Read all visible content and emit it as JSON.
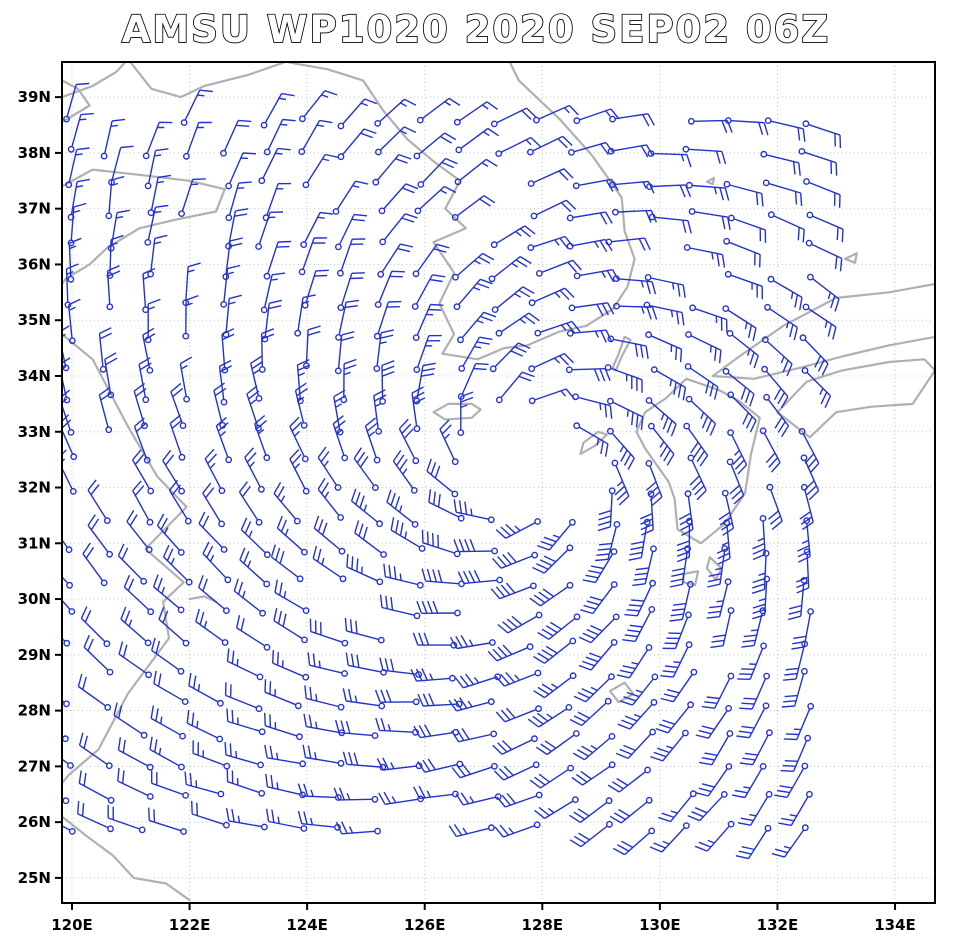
{
  "title": "AMSU WP1020 2020 SEP02 06Z",
  "colors": {
    "background": "#ffffff",
    "frame": "#000000",
    "grid": "#c4c4c4",
    "coastline": "#b0b0b0",
    "barb": "#2233cc",
    "label": "#000000"
  },
  "chart_data": {
    "type": "wind_barb_map",
    "title": "AMSU WP1020 2020 SEP02 06Z",
    "projection": "lat-lon",
    "grid_style": "dotted",
    "lon_range": [
      119.83,
      134.68
    ],
    "lat_range": [
      24.55,
      39.63
    ],
    "x_ticks": [
      {
        "value": 120,
        "label": "120E"
      },
      {
        "value": 122,
        "label": "122E"
      },
      {
        "value": 124,
        "label": "124E"
      },
      {
        "value": 126,
        "label": "126E"
      },
      {
        "value": 128,
        "label": "128E"
      },
      {
        "value": 130,
        "label": "130E"
      },
      {
        "value": 132,
        "label": "132E"
      },
      {
        "value": 134,
        "label": "134E"
      }
    ],
    "y_ticks": [
      {
        "value": 25,
        "label": "25N"
      },
      {
        "value": 26,
        "label": "26N"
      },
      {
        "value": 27,
        "label": "27N"
      },
      {
        "value": 28,
        "label": "28N"
      },
      {
        "value": 29,
        "label": "29N"
      },
      {
        "value": 30,
        "label": "30N"
      },
      {
        "value": 31,
        "label": "31N"
      },
      {
        "value": 32,
        "label": "32N"
      },
      {
        "value": 33,
        "label": "33N"
      },
      {
        "value": 34,
        "label": "34N"
      },
      {
        "value": 35,
        "label": "35N"
      },
      {
        "value": 36,
        "label": "36N"
      },
      {
        "value": 37,
        "label": "37N"
      },
      {
        "value": 38,
        "label": "38N"
      },
      {
        "value": 39,
        "label": "39N"
      }
    ],
    "wind_field": {
      "description": "Satellite-derived wind barbs around tropical cyclone WP1020; cyclonic (counterclockwise) circulation; 10 kt per full barb, 5 kt per half barb; open circle marks observation point, staff points upwind",
      "units": "kt",
      "center_lonlat": [
        127.8,
        32.5
      ],
      "eye_radius_deg": 0.9,
      "max_wind_kt": 38,
      "radius_max_wind_deg": 2.0,
      "inflow_deg": 22,
      "asymmetry_amplitude": 0.28,
      "asymmetry_peak_bearing_deg": -60,
      "grid_lon_start": 119.95,
      "grid_lon_step": 0.66,
      "grid_cols": 20,
      "grid_lat_start": 25.9,
      "grid_lat_step": 0.55,
      "grid_rows": 24,
      "dropout_fraction": 0.09,
      "speed_range_kt": [
        5,
        42
      ]
    },
    "coastlines": [
      {
        "name": "bohai-west",
        "points": [
          [
            119.83,
            39.0
          ],
          [
            120.35,
            39.2
          ],
          [
            120.75,
            39.45
          ],
          [
            120.9,
            39.62
          ]
        ]
      },
      {
        "name": "bohai-bay",
        "points": [
          [
            119.83,
            38.55
          ],
          [
            120.3,
            38.85
          ],
          [
            120.1,
            39.15
          ],
          [
            119.83,
            39.3
          ]
        ]
      },
      {
        "name": "liaodong",
        "points": [
          [
            121.0,
            39.62
          ],
          [
            121.35,
            39.15
          ],
          [
            121.85,
            39.0
          ],
          [
            122.25,
            39.2
          ],
          [
            123.0,
            39.4
          ],
          [
            123.6,
            39.62
          ]
        ]
      },
      {
        "name": "korea",
        "points": [
          [
            123.7,
            39.62
          ],
          [
            124.35,
            39.5
          ],
          [
            124.95,
            39.3
          ],
          [
            125.3,
            38.75
          ],
          [
            125.7,
            38.25
          ],
          [
            126.15,
            37.85
          ],
          [
            126.6,
            37.5
          ],
          [
            126.35,
            37.0
          ],
          [
            126.7,
            36.65
          ],
          [
            126.15,
            36.4
          ],
          [
            126.5,
            35.85
          ],
          [
            126.25,
            35.3
          ],
          [
            126.5,
            34.75
          ],
          [
            126.3,
            34.4
          ],
          [
            126.9,
            34.3
          ],
          [
            127.35,
            34.5
          ],
          [
            127.75,
            34.55
          ],
          [
            128.3,
            34.8
          ],
          [
            128.75,
            34.9
          ],
          [
            129.2,
            35.2
          ],
          [
            129.45,
            35.6
          ],
          [
            129.57,
            36.1
          ],
          [
            129.4,
            36.6
          ],
          [
            129.35,
            37.2
          ],
          [
            128.85,
            37.95
          ],
          [
            128.3,
            38.6
          ],
          [
            127.6,
            39.3
          ],
          [
            127.45,
            39.62
          ]
        ]
      },
      {
        "name": "shandong",
        "points": [
          [
            119.83,
            37.4
          ],
          [
            120.35,
            37.7
          ],
          [
            121.2,
            37.6
          ],
          [
            122.0,
            37.5
          ],
          [
            122.6,
            37.35
          ],
          [
            122.45,
            36.95
          ],
          [
            121.75,
            36.8
          ],
          [
            121.15,
            36.65
          ],
          [
            120.6,
            36.3
          ],
          [
            120.3,
            36.0
          ],
          [
            119.9,
            35.75
          ],
          [
            119.83,
            35.65
          ]
        ]
      },
      {
        "name": "china-east",
        "points": [
          [
            119.83,
            34.75
          ],
          [
            120.35,
            34.3
          ],
          [
            120.95,
            33.1
          ],
          [
            121.45,
            32.2
          ],
          [
            121.95,
            31.65
          ],
          [
            121.25,
            30.9
          ],
          [
            121.9,
            30.3
          ],
          [
            121.55,
            29.95
          ],
          [
            121.65,
            29.3
          ],
          [
            120.95,
            28.3
          ],
          [
            120.45,
            27.3
          ],
          [
            119.95,
            26.85
          ],
          [
            119.83,
            26.7
          ]
        ]
      },
      {
        "name": "fujian-taiwan",
        "points": [
          [
            119.83,
            26.1
          ],
          [
            120.25,
            25.75
          ],
          [
            120.7,
            25.4
          ],
          [
            121.05,
            25.0
          ],
          [
            121.6,
            24.9
          ],
          [
            122.0,
            24.6
          ]
        ]
      },
      {
        "name": "kyushu",
        "points": [
          [
            129.75,
            33.35
          ],
          [
            130.1,
            33.6
          ],
          [
            130.45,
            33.95
          ],
          [
            131.0,
            33.75
          ],
          [
            131.35,
            33.55
          ],
          [
            131.7,
            33.25
          ],
          [
            131.55,
            32.6
          ],
          [
            131.45,
            31.9
          ],
          [
            131.1,
            31.35
          ],
          [
            130.7,
            31.0
          ],
          [
            130.3,
            31.25
          ],
          [
            130.25,
            31.8
          ],
          [
            130.15,
            32.1
          ],
          [
            129.95,
            32.4
          ],
          [
            129.75,
            32.7
          ],
          [
            129.6,
            33.0
          ],
          [
            129.75,
            33.35
          ]
        ]
      },
      {
        "name": "honshu-north",
        "points": [
          [
            130.9,
            34.0
          ],
          [
            131.35,
            34.35
          ],
          [
            132.1,
            34.9
          ],
          [
            133.0,
            35.4
          ],
          [
            133.9,
            35.5
          ],
          [
            134.68,
            35.65
          ]
        ]
      },
      {
        "name": "honshu-south",
        "points": [
          [
            130.9,
            34.0
          ],
          [
            131.6,
            33.95
          ],
          [
            132.4,
            34.15
          ],
          [
            133.1,
            34.35
          ],
          [
            133.9,
            34.55
          ],
          [
            134.68,
            34.7
          ]
        ]
      },
      {
        "name": "shikoku",
        "points": [
          [
            132.0,
            33.35
          ],
          [
            132.5,
            33.9
          ],
          [
            133.1,
            34.1
          ],
          [
            133.9,
            34.25
          ],
          [
            134.5,
            34.3
          ],
          [
            134.68,
            34.1
          ],
          [
            134.3,
            33.5
          ],
          [
            133.6,
            33.45
          ],
          [
            133.0,
            33.35
          ],
          [
            132.55,
            32.9
          ],
          [
            132.0,
            33.35
          ]
        ]
      },
      {
        "name": "jeju",
        "points": [
          [
            126.15,
            33.35
          ],
          [
            126.4,
            33.5
          ],
          [
            126.8,
            33.5
          ],
          [
            126.95,
            33.4
          ],
          [
            126.8,
            33.25
          ],
          [
            126.35,
            33.22
          ],
          [
            126.15,
            33.35
          ]
        ]
      },
      {
        "name": "tsushima",
        "points": [
          [
            129.25,
            34.1
          ],
          [
            129.35,
            34.35
          ],
          [
            129.5,
            34.65
          ],
          [
            129.4,
            34.7
          ],
          [
            129.3,
            34.4
          ],
          [
            129.2,
            34.15
          ],
          [
            129.25,
            34.1
          ]
        ]
      },
      {
        "name": "goto",
        "points": [
          [
            128.65,
            32.6
          ],
          [
            128.9,
            32.75
          ],
          [
            129.1,
            32.95
          ],
          [
            128.95,
            33.0
          ],
          [
            128.7,
            32.8
          ],
          [
            128.65,
            32.6
          ]
        ]
      },
      {
        "name": "amami",
        "points": [
          [
            129.15,
            28.35
          ],
          [
            129.4,
            28.5
          ],
          [
            129.55,
            28.3
          ],
          [
            129.3,
            28.15
          ],
          [
            129.15,
            28.35
          ]
        ]
      },
      {
        "name": "yakushima",
        "points": [
          [
            130.4,
            30.45
          ],
          [
            130.65,
            30.5
          ],
          [
            130.6,
            30.25
          ],
          [
            130.4,
            30.3
          ],
          [
            130.4,
            30.45
          ]
        ]
      },
      {
        "name": "tanegashima",
        "points": [
          [
            130.85,
            30.75
          ],
          [
            131.05,
            30.55
          ],
          [
            130.95,
            30.35
          ],
          [
            130.8,
            30.55
          ],
          [
            130.85,
            30.75
          ]
        ]
      },
      {
        "name": "oki",
        "points": [
          [
            133.15,
            36.1
          ],
          [
            133.35,
            36.2
          ],
          [
            133.32,
            36.03
          ],
          [
            133.15,
            36.1
          ]
        ]
      },
      {
        "name": "ulleung",
        "points": [
          [
            130.8,
            37.48
          ],
          [
            130.92,
            37.55
          ],
          [
            130.9,
            37.44
          ],
          [
            130.8,
            37.48
          ]
        ]
      },
      {
        "name": "zhoushan",
        "points": [
          [
            122.0,
            30.0
          ],
          [
            122.25,
            30.05
          ],
          [
            122.45,
            29.95
          ]
        ]
      }
    ]
  }
}
